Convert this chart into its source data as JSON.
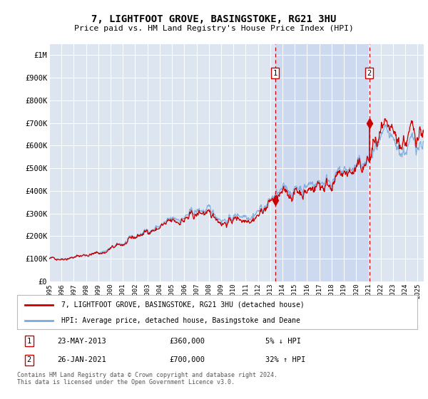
{
  "title": "7, LIGHTFOOT GROVE, BASINGSTOKE, RG21 3HU",
  "subtitle": "Price paid vs. HM Land Registry's House Price Index (HPI)",
  "background_color": "#ffffff",
  "plot_bg_color": "#dde6f0",
  "shade_color": "#ccd9ee",
  "grid_color": "#ffffff",
  "ylim": [
    0,
    1050000
  ],
  "yticks": [
    0,
    100000,
    200000,
    300000,
    400000,
    500000,
    600000,
    700000,
    800000,
    900000,
    1000000
  ],
  "ytick_labels": [
    "£0",
    "£100K",
    "£200K",
    "£300K",
    "£400K",
    "£500K",
    "£600K",
    "£700K",
    "£800K",
    "£900K",
    "£1M"
  ],
  "x_start_year": 1995,
  "x_end_year": 2025,
  "hpi_color": "#7aaadd",
  "price_color": "#cc0000",
  "sale1_date": "23-MAY-2013",
  "sale1_price": 360000,
  "sale1_pct": "5% ↓ HPI",
  "sale1_x": 2013.39,
  "sale2_date": "26-JAN-2021",
  "sale2_price": 700000,
  "sale2_pct": "32% ↑ HPI",
  "sale2_x": 2021.07,
  "legend_label_red": "7, LIGHTFOOT GROVE, BASINGSTOKE, RG21 3HU (detached house)",
  "legend_label_blue": "HPI: Average price, detached house, Basingstoke and Deane",
  "footer": "Contains HM Land Registry data © Crown copyright and database right 2024.\nThis data is licensed under the Open Government Licence v3.0.",
  "sale1_label": "1",
  "sale2_label": "2"
}
